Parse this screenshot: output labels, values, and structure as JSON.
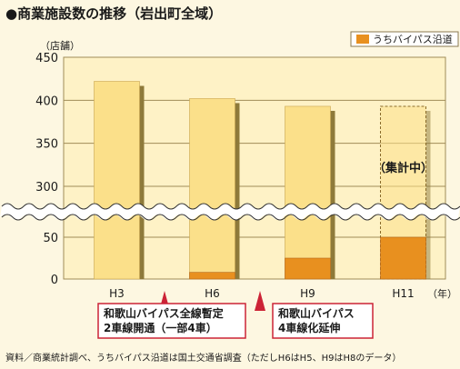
{
  "title": "●商業施設数の推移（岩出町全域）",
  "footnote": "資料／商業統計調べ、うちバイパス沿道は国土交通省調査（ただしH6はH5、H9はH8のデータ）",
  "colors": {
    "background": "#fdf7e1",
    "plot_bg": "#fef2c6",
    "total_bar": "#fbe08a",
    "bypass_bar": "#e8901f",
    "bar_shadow": "#8e7a3a",
    "grid": "#a08c58",
    "annotation_arrow": "#cc2336",
    "annotation_border": "#cc2336"
  },
  "chart_data": {
    "type": "bar",
    "title": "●商業施設数の推移（岩出町全域）",
    "unit_label": "（店舗）",
    "x_unit": "（年）",
    "categories": [
      "H3",
      "H6",
      "H9",
      "H11"
    ],
    "y_ticks": [
      0,
      50,
      300,
      350,
      400,
      450
    ],
    "axis_break": [
      50,
      300
    ],
    "ylim": [
      0,
      450
    ],
    "grid": true,
    "legend_position": "top-right",
    "series": [
      {
        "name": "",
        "values": [
          422,
          402,
          393,
          393
        ],
        "color": "#fbe08a"
      },
      {
        "name": "うちバイパス沿道",
        "values": [
          0,
          8,
          25,
          50
        ],
        "color": "#e8901f"
      }
    ],
    "pending_category": "H11",
    "pending_label": "（集計中）",
    "annotations": [
      {
        "after_category": "H3",
        "lines": [
          "和歌山バイパス全線暫定",
          "2車線開通（一部4車）"
        ]
      },
      {
        "after_category": "H6",
        "lines": [
          "和歌山バイパス",
          "4車線化延伸"
        ]
      }
    ]
  }
}
